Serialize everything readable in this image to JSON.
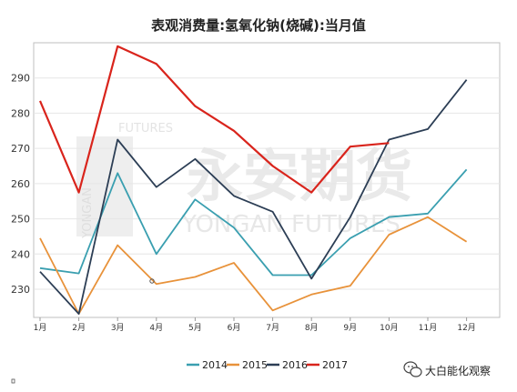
{
  "chart_data": {
    "type": "line",
    "title": "表观消费量:氢氧化钠(烧碱):当月值",
    "categories": [
      "1月",
      "2月",
      "3月",
      "4月",
      "5月",
      "6月",
      "7月",
      "8月",
      "9月",
      "10月",
      "11月",
      "12月"
    ],
    "ylim": [
      222,
      300
    ],
    "yticks": [
      230,
      240,
      250,
      260,
      270,
      280,
      290
    ],
    "grid": true,
    "legend_position": "bottom",
    "series": [
      {
        "name": "2014",
        "color": "#3a9fb0",
        "values": [
          236,
          234.5,
          263,
          240,
          255.5,
          247.5,
          234,
          234,
          244.5,
          250.5,
          251.5,
          264
        ]
      },
      {
        "name": "2015",
        "color": "#e8923a",
        "values": [
          244.5,
          223,
          242.5,
          231.5,
          233.5,
          237.5,
          224,
          228.5,
          231,
          245.5,
          250.5,
          243.5
        ]
      },
      {
        "name": "2016",
        "color": "#2c3e55",
        "values": [
          235,
          223,
          272.5,
          259,
          267,
          256.5,
          252,
          233,
          250.5,
          272.5,
          275.5,
          289.5
        ]
      },
      {
        "name": "2017",
        "color": "#d9241c",
        "values": [
          283.5,
          257.5,
          299,
          294,
          282,
          275,
          265,
          257.5,
          270.5,
          271.5,
          null,
          null
        ]
      }
    ]
  },
  "watermark": {
    "brand_cn": "永安期货",
    "brand_en": "YONGAN FUTURES",
    "small_left": "FUTURES",
    "vertical": "YONGAN"
  },
  "footer": {
    "brand": "大白能化观察",
    "icon": "wechat-icon"
  }
}
